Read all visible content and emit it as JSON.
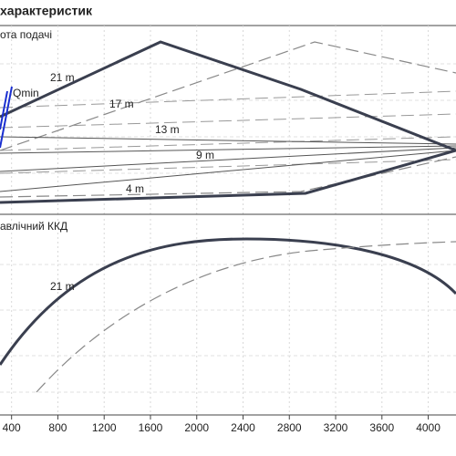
{
  "chart_data": {
    "type": "line",
    "title": "характеристик",
    "panels": [
      "ота подачі",
      "авлічний ККД"
    ],
    "curve_labels": [
      "21 m",
      "17 m",
      "13 m",
      "9 m",
      "4 m",
      "Qmin"
    ],
    "efficiency_curve_label": "21 m",
    "xlim": [
      300,
      4240
    ],
    "xticks": [
      400,
      800,
      1200,
      1600,
      2000,
      2400,
      2800,
      3200,
      3600,
      4000
    ],
    "grid": true
  }
}
